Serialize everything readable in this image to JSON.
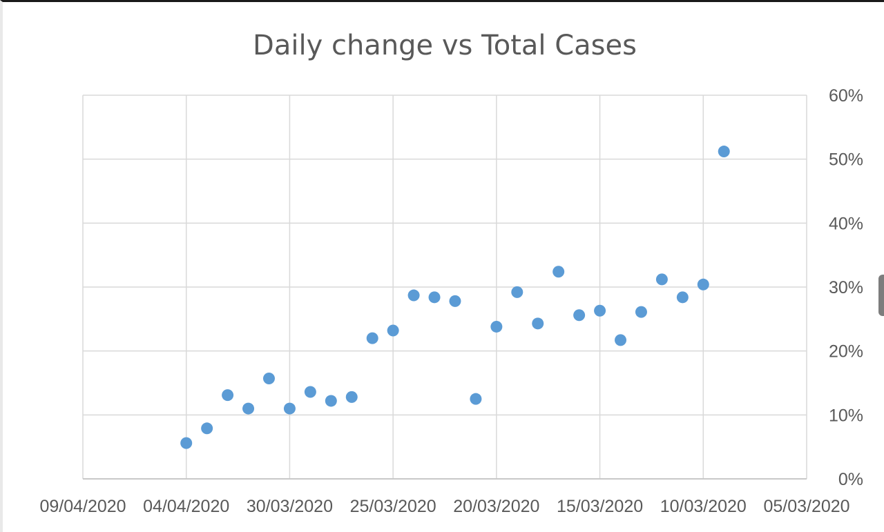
{
  "chart_data": {
    "type": "scatter",
    "title": "Daily change vs Total Cases",
    "xlabel": "",
    "ylabel": "",
    "x_axis": {
      "type": "date",
      "reversed": true,
      "min": "09/04/2020",
      "max": "05/03/2020",
      "tick_labels": [
        "09/04/2020",
        "04/04/2020",
        "30/03/2020",
        "25/03/2020",
        "20/03/2020",
        "15/03/2020",
        "10/03/2020",
        "05/03/2020"
      ]
    },
    "y_axis": {
      "position": "right",
      "format": "percent",
      "ylim": [
        0,
        0.6
      ],
      "tick_labels": [
        "0%",
        "10%",
        "20%",
        "30%",
        "40%",
        "50%",
        "60%"
      ]
    },
    "grid": true,
    "legend": "none",
    "series": [
      {
        "color": "#5b9bd5",
        "points": [
          {
            "x": "04/04/2020",
            "y": 0.056
          },
          {
            "x": "03/04/2020",
            "y": 0.079
          },
          {
            "x": "02/04/2020",
            "y": 0.131
          },
          {
            "x": "01/04/2020",
            "y": 0.11
          },
          {
            "x": "31/03/2020",
            "y": 0.157
          },
          {
            "x": "30/03/2020",
            "y": 0.11
          },
          {
            "x": "29/03/2020",
            "y": 0.136
          },
          {
            "x": "28/03/2020",
            "y": 0.122
          },
          {
            "x": "27/03/2020",
            "y": 0.128
          },
          {
            "x": "26/03/2020",
            "y": 0.22
          },
          {
            "x": "25/03/2020",
            "y": 0.232
          },
          {
            "x": "24/03/2020",
            "y": 0.287
          },
          {
            "x": "23/03/2020",
            "y": 0.284
          },
          {
            "x": "22/03/2020",
            "y": 0.278
          },
          {
            "x": "21/03/2020",
            "y": 0.125
          },
          {
            "x": "20/03/2020",
            "y": 0.238
          },
          {
            "x": "19/03/2020",
            "y": 0.292
          },
          {
            "x": "18/03/2020",
            "y": 0.243
          },
          {
            "x": "17/03/2020",
            "y": 0.324
          },
          {
            "x": "16/03/2020",
            "y": 0.256
          },
          {
            "x": "15/03/2020",
            "y": 0.263
          },
          {
            "x": "14/03/2020",
            "y": 0.217
          },
          {
            "x": "13/03/2020",
            "y": 0.261
          },
          {
            "x": "12/03/2020",
            "y": 0.312
          },
          {
            "x": "11/03/2020",
            "y": 0.284
          },
          {
            "x": "10/03/2020",
            "y": 0.304
          },
          {
            "x": "09/03/2020",
            "y": 0.512
          }
        ]
      }
    ]
  }
}
